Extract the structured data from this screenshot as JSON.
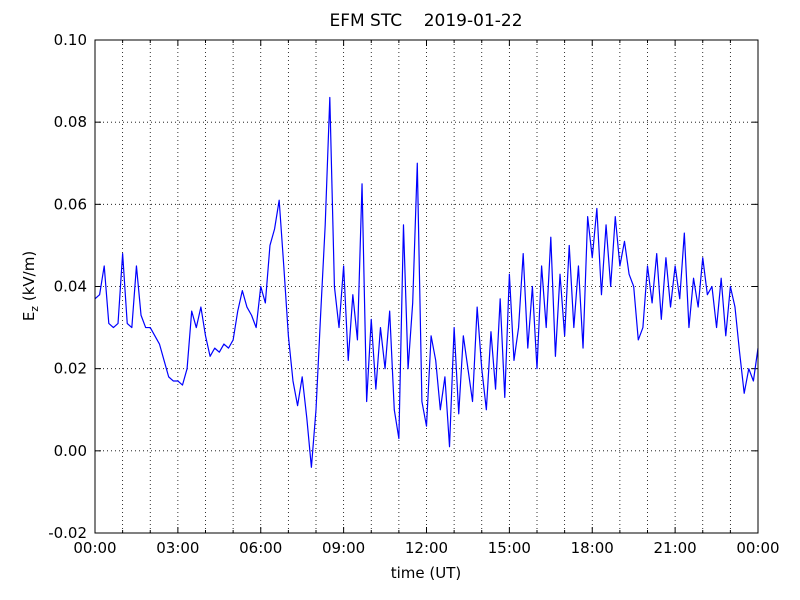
{
  "chart_data": {
    "type": "line",
    "title": "EFM STC    2019-01-22",
    "xlabel": "time (UT)",
    "ylabel": {
      "base": "E",
      "sub": "z",
      "unit": " (kV/m)"
    },
    "grid": true,
    "xlim": [
      0,
      1440
    ],
    "xticks": [
      {
        "value": 0,
        "label": "00:00"
      },
      {
        "value": 180,
        "label": "03:00"
      },
      {
        "value": 360,
        "label": "06:00"
      },
      {
        "value": 540,
        "label": "09:00"
      },
      {
        "value": 720,
        "label": "12:00"
      },
      {
        "value": 900,
        "label": "15:00"
      },
      {
        "value": 1080,
        "label": "18:00"
      },
      {
        "value": 1260,
        "label": "21:00"
      },
      {
        "value": 1440,
        "label": "00:00"
      }
    ],
    "xticks_minor": [
      60,
      120,
      240,
      300,
      420,
      480,
      600,
      660,
      780,
      840,
      960,
      1020,
      1140,
      1200,
      1320,
      1380
    ],
    "ylim": [
      -0.02,
      0.1
    ],
    "yticks": [
      -0.02,
      {
        "value": 0,
        "label": "0.00"
      },
      0.02,
      0.04,
      0.06,
      0.08,
      {
        "value": 0.1,
        "label": "0.10"
      }
    ],
    "x": [
      0,
      10,
      20,
      30,
      40,
      50,
      60,
      70,
      80,
      90,
      100,
      110,
      120,
      130,
      140,
      150,
      160,
      170,
      180,
      190,
      200,
      210,
      220,
      230,
      240,
      250,
      260,
      270,
      280,
      290,
      300,
      310,
      320,
      330,
      340,
      350,
      360,
      370,
      380,
      390,
      400,
      410,
      420,
      430,
      440,
      450,
      460,
      470,
      480,
      490,
      500,
      510,
      520,
      530,
      540,
      550,
      560,
      570,
      580,
      590,
      600,
      610,
      620,
      630,
      640,
      650,
      660,
      670,
      680,
      690,
      700,
      710,
      720,
      730,
      740,
      750,
      760,
      770,
      780,
      790,
      800,
      810,
      820,
      830,
      840,
      850,
      860,
      870,
      880,
      890,
      900,
      910,
      920,
      930,
      940,
      950,
      960,
      970,
      980,
      990,
      1000,
      1010,
      1020,
      1030,
      1040,
      1050,
      1060,
      1070,
      1080,
      1090,
      1100,
      1110,
      1120,
      1130,
      1140,
      1150,
      1160,
      1170,
      1180,
      1190,
      1200,
      1210,
      1220,
      1230,
      1240,
      1250,
      1260,
      1270,
      1280,
      1290,
      1300,
      1310,
      1320,
      1330,
      1340,
      1350,
      1360,
      1370,
      1380,
      1390,
      1400,
      1410,
      1420,
      1430,
      1440
    ],
    "series": [
      {
        "name": "Ez",
        "color": "#0000ff",
        "values": [
          0.037,
          0.038,
          0.045,
          0.031,
          0.03,
          0.031,
          0.048,
          0.031,
          0.03,
          0.045,
          0.033,
          0.03,
          0.03,
          0.028,
          0.026,
          0.022,
          0.018,
          0.017,
          0.017,
          0.016,
          0.02,
          0.034,
          0.03,
          0.035,
          0.028,
          0.023,
          0.025,
          0.024,
          0.026,
          0.025,
          0.027,
          0.034,
          0.039,
          0.035,
          0.033,
          0.03,
          0.04,
          0.036,
          0.05,
          0.054,
          0.061,
          0.045,
          0.028,
          0.017,
          0.011,
          0.018,
          0.008,
          -0.004,
          0.01,
          0.033,
          0.055,
          0.086,
          0.04,
          0.03,
          0.045,
          0.022,
          0.038,
          0.027,
          0.065,
          0.012,
          0.032,
          0.015,
          0.03,
          0.02,
          0.034,
          0.01,
          0.003,
          0.055,
          0.02,
          0.036,
          0.07,
          0.012,
          0.006,
          0.028,
          0.022,
          0.01,
          0.018,
          0.001,
          0.03,
          0.009,
          0.028,
          0.02,
          0.012,
          0.035,
          0.02,
          0.01,
          0.029,
          0.015,
          0.037,
          0.013,
          0.043,
          0.022,
          0.03,
          0.048,
          0.025,
          0.04,
          0.02,
          0.045,
          0.03,
          0.052,
          0.023,
          0.043,
          0.028,
          0.05,
          0.03,
          0.045,
          0.025,
          0.057,
          0.047,
          0.059,
          0.038,
          0.055,
          0.04,
          0.057,
          0.045,
          0.051,
          0.043,
          0.04,
          0.027,
          0.03,
          0.045,
          0.036,
          0.048,
          0.032,
          0.047,
          0.035,
          0.045,
          0.037,
          0.053,
          0.03,
          0.042,
          0.035,
          0.047,
          0.038,
          0.04,
          0.03,
          0.042,
          0.028,
          0.04,
          0.035,
          0.024,
          0.014,
          0.02,
          0.017,
          0.025
        ]
      }
    ]
  }
}
